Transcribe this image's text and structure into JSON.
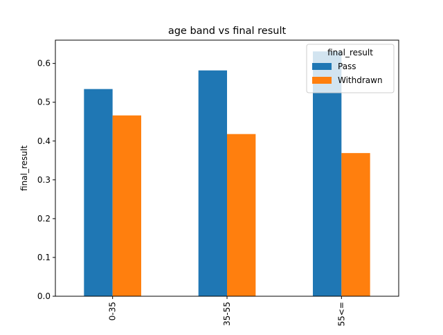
{
  "chart_data": {
    "type": "bar",
    "title": "age band vs final result",
    "xlabel": "",
    "ylabel": "final_result",
    "categories": [
      "0-35",
      "35-55",
      "55<="
    ],
    "series": [
      {
        "name": "Pass",
        "values": [
          0.534,
          0.582,
          0.631
        ],
        "color": "#1f77b4"
      },
      {
        "name": "Withdrawn",
        "values": [
          0.466,
          0.418,
          0.369
        ],
        "color": "#ff7f0e"
      }
    ],
    "ylim": [
      0,
      0.66
    ],
    "yticks": [
      0.0,
      0.1,
      0.2,
      0.3,
      0.4,
      0.5,
      0.6
    ],
    "ytick_labels": [
      "0.0",
      "0.1",
      "0.2",
      "0.3",
      "0.4",
      "0.5",
      "0.6"
    ],
    "legend": {
      "title": "final_result",
      "placement": "top-right"
    },
    "grid": false
  }
}
